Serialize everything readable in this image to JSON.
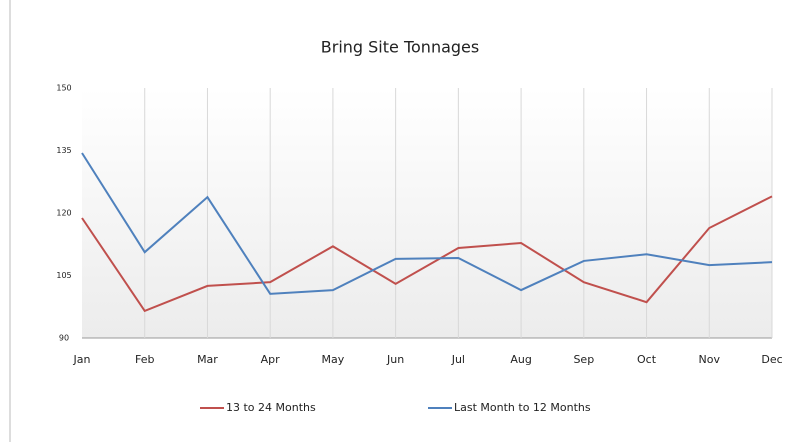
{
  "chart_data": {
    "type": "line",
    "title": "Bring Site Tonnages",
    "categories": [
      "Jan",
      "Feb",
      "Mar",
      "Apr",
      "May",
      "Jun",
      "Jul",
      "Aug",
      "Sep",
      "Oct",
      "Nov",
      "Dec"
    ],
    "series": [
      {
        "name": "13 to 24 Months",
        "color": "#c0504d",
        "values": [
          118.8,
          96.5,
          102.5,
          103.4,
          112,
          103,
          111.6,
          112.8,
          103.4,
          98.6,
          116.4,
          124
        ]
      },
      {
        "name": "Last Month to 12 Months",
        "color": "#4f81bd",
        "values": [
          134.4,
          110.6,
          123.8,
          100.6,
          101.5,
          109,
          109.2,
          101.5,
          108.5,
          110.1,
          107.5,
          108.2
        ]
      }
    ],
    "ylim": [
      90,
      150
    ],
    "yticks": [
      90,
      105,
      120,
      135,
      150
    ],
    "grid": false,
    "xgrid": true,
    "legend": "bottom"
  }
}
